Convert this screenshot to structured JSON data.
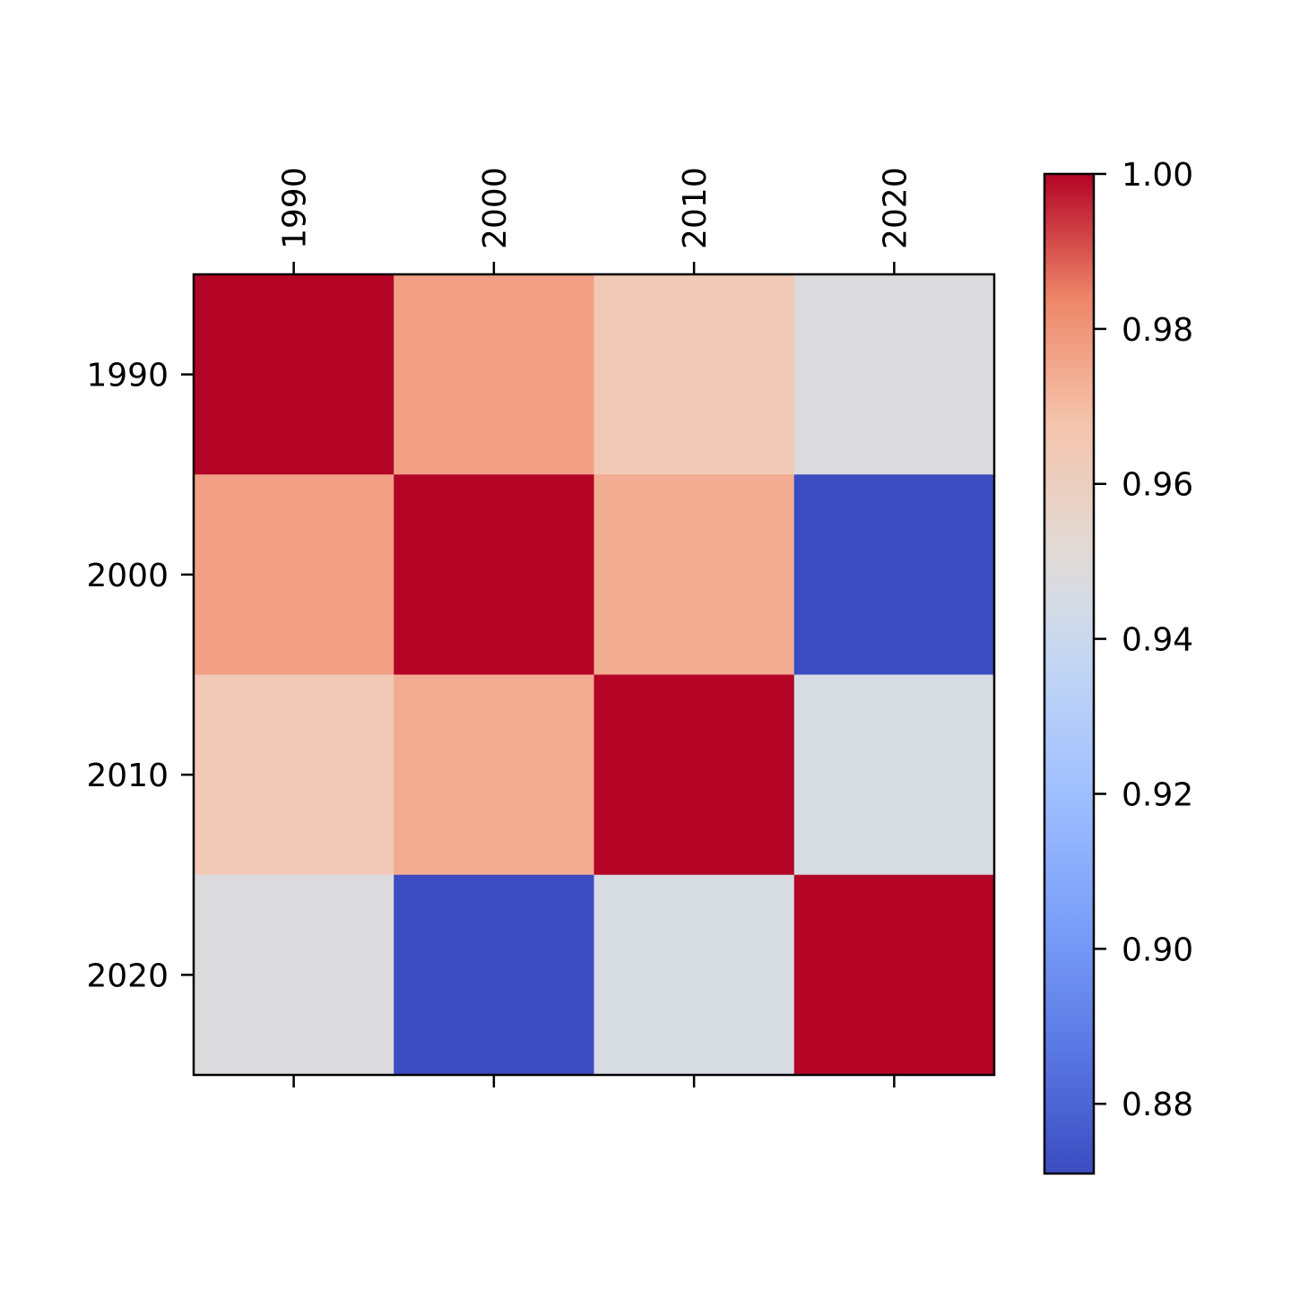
{
  "chart_data": {
    "type": "heatmap",
    "title": "",
    "xlabel": "",
    "ylabel": "",
    "x_categories": [
      "1990",
      "2000",
      "2010",
      "2020"
    ],
    "y_categories": [
      "1990",
      "2000",
      "2010",
      "2020"
    ],
    "x_tick_position": "top",
    "x_tick_rotation": -90,
    "values": [
      [
        1.0,
        0.977,
        0.964,
        0.948
      ],
      [
        0.977,
        1.0,
        0.974,
        0.871
      ],
      [
        0.964,
        0.974,
        1.0,
        0.946
      ],
      [
        0.948,
        0.871,
        0.946,
        1.0
      ]
    ],
    "colormap": "coolwarm",
    "colorbar": {
      "min": 0.871,
      "max": 1.0,
      "ticks": [
        0.88,
        0.9,
        0.92,
        0.94,
        0.96,
        0.98,
        1.0
      ],
      "tick_labels": [
        "0.88",
        "0.90",
        "0.92",
        "0.94",
        "0.96",
        "0.98",
        "1.00"
      ],
      "placement": "right"
    },
    "grid": false
  }
}
